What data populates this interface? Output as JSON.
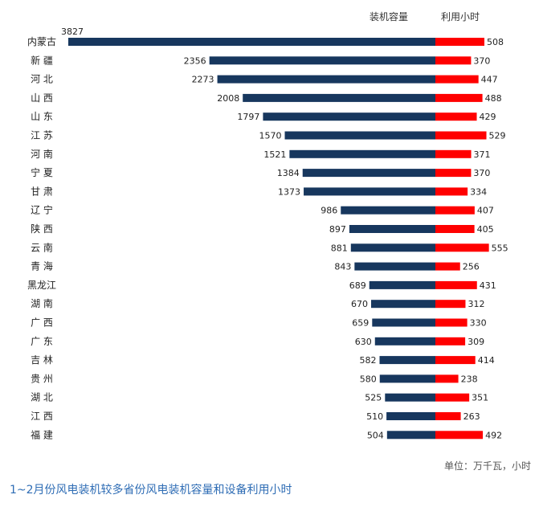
{
  "chart_data": {
    "type": "bar",
    "layout": "diverging-horizontal",
    "categories": [
      "内蒙古",
      "新 疆",
      "河 北",
      "山 西",
      "山 东",
      "江 苏",
      "河 南",
      "宁 夏",
      "甘 肃",
      "辽 宁",
      "陕 西",
      "云 南",
      "青 海",
      "黑龙江",
      "湖 南",
      "广 西",
      "广 东",
      "吉 林",
      "贵 州",
      "湖 北",
      "江 西",
      "福 建"
    ],
    "series": [
      {
        "name": "装机容量",
        "color": "#17375e",
        "values": [
          3827,
          2356,
          2273,
          2008,
          1797,
          1570,
          1521,
          1384,
          1373,
          986,
          897,
          881,
          843,
          689,
          670,
          659,
          630,
          582,
          580,
          525,
          510,
          504
        ]
      },
      {
        "name": "利用小时",
        "color": "#ff0000",
        "values": [
          508,
          370,
          447,
          488,
          429,
          529,
          371,
          370,
          334,
          407,
          405,
          555,
          256,
          431,
          312,
          330,
          309,
          414,
          238,
          351,
          263,
          492
        ]
      }
    ],
    "unit": "单位：万千瓦，小时",
    "caption": "1~2月份风电装机较多省份风电装机容量和设备利用小时"
  }
}
